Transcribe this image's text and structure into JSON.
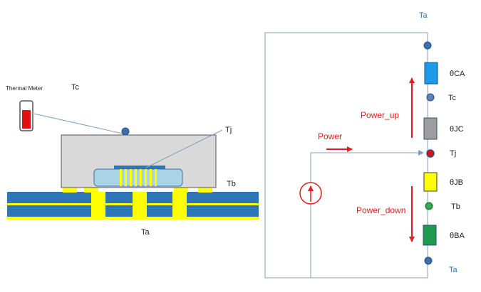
{
  "package": {
    "meter_label": "Thermal Meter",
    "tc_label": "Tc",
    "tj_label": "Tj",
    "tb_label": "Tb",
    "ta_label": "Ta"
  },
  "network": {
    "ta_top": "Ta",
    "ta_bottom": "Ta",
    "theta_ca": "θCA",
    "tc": "Tc",
    "theta_jc": "θJC",
    "tj": "Tj",
    "theta_jb": "θJB",
    "tb": "Tb",
    "theta_ba": "θBA",
    "power": "Power",
    "power_up": "Power_up",
    "power_down": "Power_down"
  },
  "colors": {
    "board": "#2e75b6",
    "board_stripe": "#ffff00",
    "package_body": "#d9d9d9",
    "die": "#a9d4e6",
    "wire": "#7f9fbf",
    "node": "#3a6ea8",
    "tj_node": "#e01010",
    "tb_node": "#2fa84f",
    "theta_ca_res": "#1e9be8",
    "theta_jc_res": "#9e9e9e",
    "theta_jb_res": "#ffff00",
    "theta_ba_res": "#1f9a4e",
    "arrow": "#e81b1b",
    "text_dark": "#222222",
    "text_blue": "#2e75b6"
  }
}
